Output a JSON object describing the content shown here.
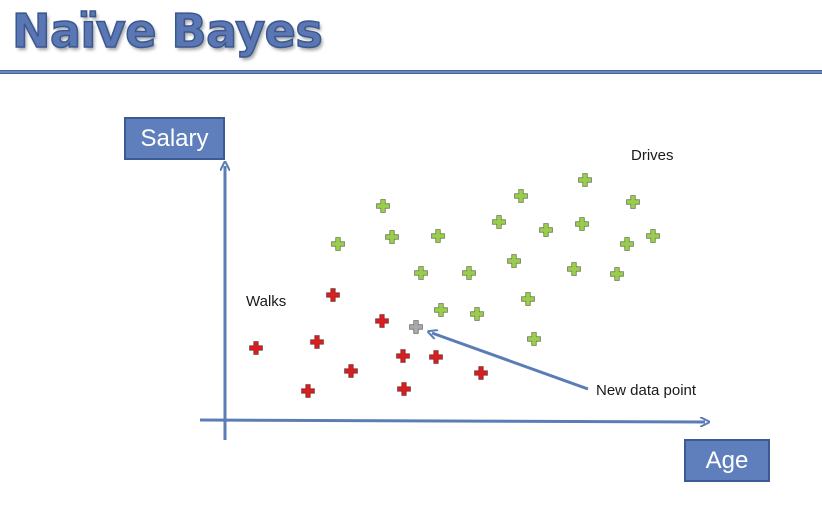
{
  "title": "Naïve Bayes",
  "y_axis_label": "Salary",
  "x_axis_label": "Age",
  "region_labels": {
    "walks": "Walks",
    "drives": "Drives"
  },
  "annotation": "New data point",
  "colors": {
    "title": "#5a77b3",
    "axis": "#5b7db5",
    "walks": "#d81e1e",
    "drives": "#9acd4c",
    "new_point": "#a9a9a9"
  },
  "chart_data": {
    "type": "scatter",
    "xlabel": "Age",
    "ylabel": "Salary",
    "series": [
      {
        "name": "Walks",
        "marker": "plus",
        "points": [
          [
            256,
            348
          ],
          [
            308,
            391
          ],
          [
            317,
            342
          ],
          [
            333,
            295
          ],
          [
            351,
            371
          ],
          [
            382,
            321
          ],
          [
            403,
            356
          ],
          [
            404,
            389
          ],
          [
            436,
            357
          ],
          [
            481,
            373
          ]
        ]
      },
      {
        "name": "Drives",
        "marker": "plus",
        "points": [
          [
            338,
            244
          ],
          [
            383,
            206
          ],
          [
            392,
            237
          ],
          [
            438,
            236
          ],
          [
            421,
            273
          ],
          [
            441,
            310
          ],
          [
            469,
            273
          ],
          [
            477,
            314
          ],
          [
            499,
            222
          ],
          [
            514,
            261
          ],
          [
            521,
            196
          ],
          [
            528,
            299
          ],
          [
            534,
            339
          ],
          [
            546,
            230
          ],
          [
            574,
            269
          ],
          [
            582,
            224
          ],
          [
            585,
            180
          ],
          [
            617,
            274
          ],
          [
            627,
            244
          ],
          [
            633,
            202
          ],
          [
            653,
            236
          ]
        ]
      },
      {
        "name": "New data point",
        "marker": "plus",
        "points": [
          [
            416,
            327
          ]
        ]
      }
    ]
  }
}
